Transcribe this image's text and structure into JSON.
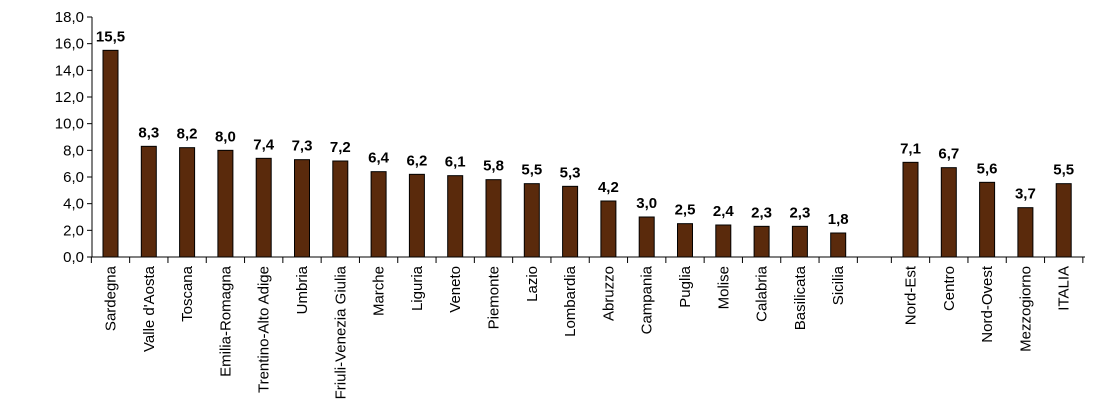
{
  "chart_data": {
    "type": "bar",
    "title": "",
    "xlabel": "",
    "ylabel": "",
    "ylim": [
      0,
      18
    ],
    "yticks": [
      "0,0",
      "2,0",
      "4,0",
      "6,0",
      "8,0",
      "10,0",
      "12,0",
      "14,0",
      "16,0",
      "18,0"
    ],
    "grid": false,
    "legend": "none",
    "bar_color": "#5a2a0c",
    "categories": [
      "Sardegna",
      "Valle d'Aosta",
      "Toscana",
      "Emilia-Romagna",
      "Trentino-Alto Adige",
      "Umbria",
      "Friuli-Venezia Giulia",
      "Marche",
      "Liguria",
      "Veneto",
      "Piemonte",
      "Lazio",
      "Lombardia",
      "Abruzzo",
      "Campania",
      "Puglia",
      "Molise",
      "Calabria",
      "Basilicata",
      "Sicilia",
      "Nord-Est",
      "Centro",
      "Nord-Ovest",
      "Mezzogiorno",
      "ITALIA"
    ],
    "values": [
      15.5,
      8.3,
      8.2,
      8.0,
      7.4,
      7.3,
      7.2,
      6.4,
      6.2,
      6.1,
      5.8,
      5.5,
      5.3,
      4.2,
      3.0,
      2.5,
      2.4,
      2.3,
      2.3,
      1.8,
      7.1,
      6.7,
      5.6,
      3.7,
      5.5
    ],
    "value_labels": [
      "15,5",
      "8,3",
      "8,2",
      "8,0",
      "7,4",
      "7,3",
      "7,2",
      "6,4",
      "6,2",
      "6,1",
      "5,8",
      "5,5",
      "5,3",
      "4,2",
      "3,0",
      "2,5",
      "2,4",
      "2,3",
      "2,3",
      "1,8",
      "7,1",
      "6,7",
      "5,6",
      "3,7",
      "5,5"
    ]
  }
}
